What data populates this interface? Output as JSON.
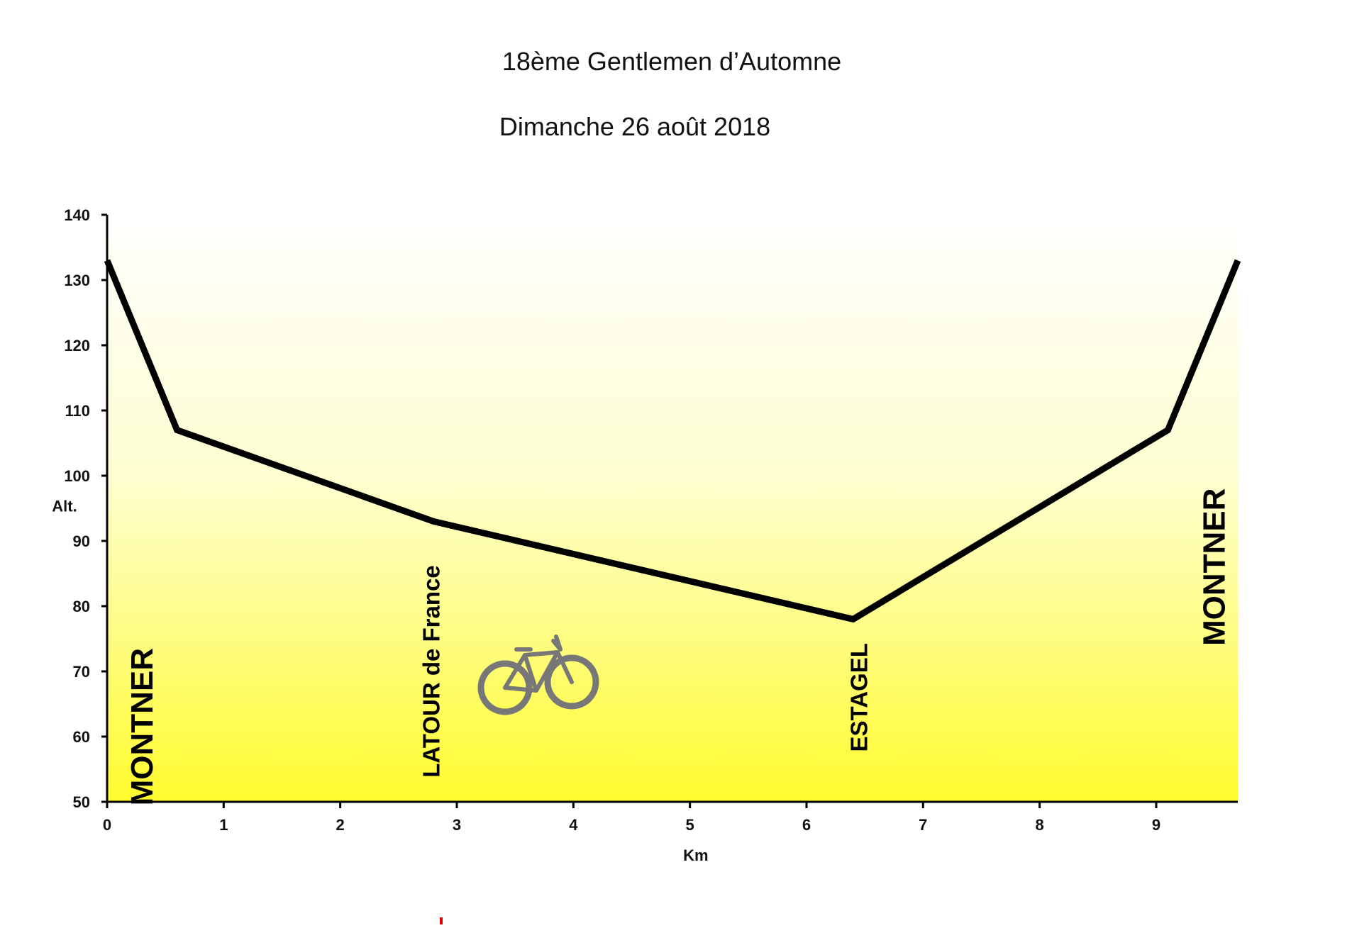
{
  "chart_data": {
    "type": "line",
    "title": "18ème Gentlemen d’Automne",
    "subtitle": "Dimanche 26 août 2018",
    "xlabel": "Km",
    "ylabel": "Alt.",
    "xlim": [
      0,
      9.7
    ],
    "ylim": [
      50,
      140
    ],
    "x_ticks": [
      0,
      1,
      2,
      3,
      4,
      5,
      6,
      7,
      8,
      9
    ],
    "y_ticks": [
      50,
      60,
      70,
      80,
      90,
      100,
      110,
      120,
      130,
      140
    ],
    "series": [
      {
        "x": [
          0,
          0.6,
          2.8,
          6.4,
          9.1,
          9.7
        ],
        "y": [
          133,
          107,
          93,
          78,
          107,
          133
        ]
      }
    ],
    "places": [
      {
        "label": "MONTNER",
        "km": 0.3,
        "alt": 61.5,
        "size": 44
      },
      {
        "label": "LATOUR de France",
        "km": 2.78,
        "alt": 70,
        "size": 33
      },
      {
        "label": "ESTAGEL",
        "km": 6.45,
        "alt": 66,
        "size": 33
      },
      {
        "label": "MONTNER",
        "km": 9.5,
        "alt": 86,
        "size": 44
      }
    ],
    "grid": false,
    "colors": {
      "line": "#000000",
      "fill_top": "#ffffff",
      "fill_bottom": "#fffb2e",
      "axis": "#000000",
      "bike": "#777777",
      "mark": "#e00000"
    }
  }
}
